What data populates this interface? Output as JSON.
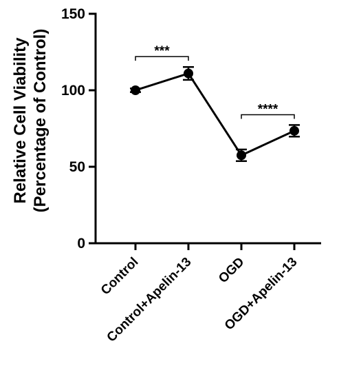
{
  "chart_data": {
    "type": "line",
    "categories": [
      "Control",
      "Control+Apelin-13",
      "OGD",
      "OGD+Apelin-13"
    ],
    "series": [
      {
        "values": [
          100,
          111,
          57.5,
          73.5
        ],
        "errors": [
          1.2,
          4.2,
          3.8,
          3.8
        ]
      }
    ],
    "ylabel_lines": [
      "Relative Cell Viability",
      "(Percentage of Control)"
    ],
    "ylim": [
      0,
      150
    ],
    "yticks": [
      0,
      50,
      100,
      150
    ],
    "grid": false,
    "colors": {
      "line": "#000000",
      "marker": "#000000"
    },
    "annotations": [
      {
        "from": 0,
        "to": 1,
        "label": "***",
        "y": 122
      },
      {
        "from": 2,
        "to": 3,
        "label": "****",
        "y": 84
      }
    ]
  }
}
